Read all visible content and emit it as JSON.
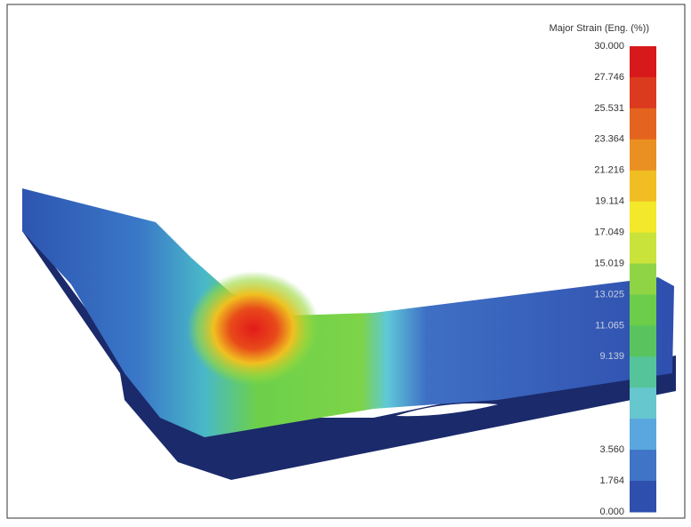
{
  "legend": {
    "title": "Major Strain (Eng. (%))",
    "labels": [
      "30.000",
      "27.746",
      "25.531",
      "23.364",
      "21.216",
      "19.114",
      "17.049",
      "15.019",
      "13.025",
      "11.065",
      "9.139",
      "3.560",
      "1.764",
      "0.000"
    ]
  }
}
